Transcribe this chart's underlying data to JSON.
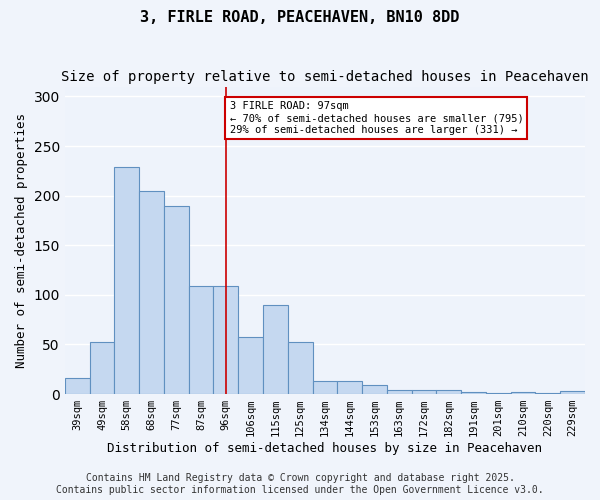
{
  "title": "3, FIRLE ROAD, PEACEHAVEN, BN10 8DD",
  "subtitle": "Size of property relative to semi-detached houses in Peacehaven",
  "xlabel": "Distribution of semi-detached houses by size in Peacehaven",
  "ylabel": "Number of semi-detached properties",
  "categories": [
    "39sqm",
    "49sqm",
    "58sqm",
    "68sqm",
    "77sqm",
    "87sqm",
    "96sqm",
    "106sqm",
    "115sqm",
    "125sqm",
    "134sqm",
    "144sqm",
    "153sqm",
    "163sqm",
    "172sqm",
    "182sqm",
    "191sqm",
    "201sqm",
    "210sqm",
    "220sqm",
    "229sqm"
  ],
  "values": [
    16,
    52,
    229,
    205,
    190,
    109,
    109,
    58,
    90,
    52,
    13,
    13,
    9,
    4,
    4,
    4,
    2,
    1,
    2,
    1,
    3
  ],
  "bar_color": "#c5d8f0",
  "bar_edge_color": "#6090c0",
  "reference_line_x": 6,
  "annotation_title": "3 FIRLE ROAD: 97sqm",
  "annotation_line1": "← 70% of semi-detached houses are smaller (795)",
  "annotation_line2": "29% of semi-detached houses are larger (331) →",
  "annotation_box_color": "#ffffff",
  "annotation_box_edge": "#cc0000",
  "ref_line_color": "#cc0000",
  "footer1": "Contains HM Land Registry data © Crown copyright and database right 2025.",
  "footer2": "Contains public sector information licensed under the Open Government Licence v3.0.",
  "ylim": [
    0,
    310
  ],
  "background_color": "#eef3fb",
  "fig_background_color": "#f0f4fb",
  "grid_color": "#ffffff",
  "title_fontsize": 11,
  "subtitle_fontsize": 10,
  "tick_fontsize": 7.5,
  "ylabel_fontsize": 9,
  "xlabel_fontsize": 9,
  "footer_fontsize": 7
}
